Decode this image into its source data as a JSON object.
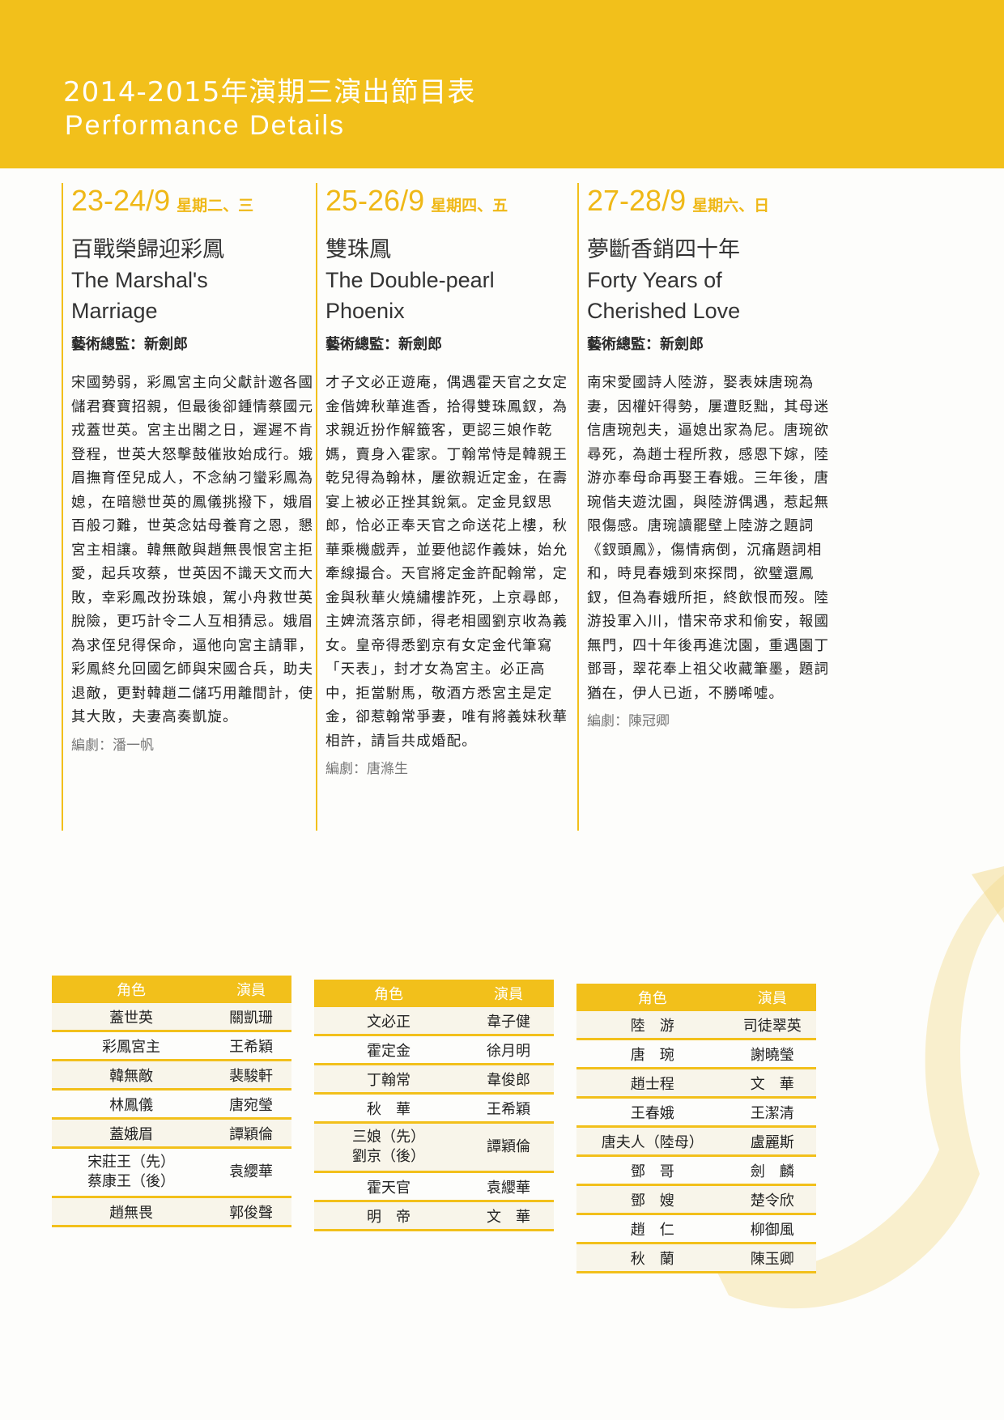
{
  "header": {
    "title_zh": "2014-2015年演期三演出節目表",
    "title_en": "Performance Details"
  },
  "colors": {
    "accent": "#f2c01b",
    "row_alt": "#f8f5ea"
  },
  "shows": [
    {
      "date": "23-24/9",
      "weekday": "星期二、三",
      "title_zh": "百戰榮歸迎彩鳳",
      "title_en_1": "The Marshal's",
      "title_en_2": "Marriage",
      "director": "藝術總監：新劍郎",
      "synopsis": "宋國勢弱，彩鳳宮主向父獻計邀各國儲君賽寶招親，但最後卻鍾情蔡國元戎蓋世英。宮主出閣之日，遲遲不肯登程，世英大怒擊鼓催妝始成行。娥眉撫育侄兒成人，不念納刁蠻彩鳳為媳，在暗戀世英的鳳儀挑撥下，娥眉百般刁難，世英念姑母養育之恩，懇宮主相讓。韓無敵與趙無畏恨宮主拒愛，起兵攻蔡，世英因不識天文而大敗，幸彩鳳改扮珠娘，駕小舟救世英脫險，更巧計令二人互相猜忌。娥眉為求侄兒得保命，逼他向宮主請罪，彩鳳終允回國乞師與宋國合兵，助夫退敵，更對韓趙二儲巧用離間計，使其大敗，夫妻高奏凱旋。",
      "writer": "編劇：潘一帆"
    },
    {
      "date": "25-26/9",
      "weekday": "星期四、五",
      "title_zh": "雙珠鳳",
      "title_en_1": "The Double-pearl",
      "title_en_2": "Phoenix",
      "director": "藝術總監：新劍郎",
      "synopsis": "才子文必正遊庵，偶遇霍天官之女定金偕婢秋華進香，拾得雙珠鳳釵，為求親近扮作解籤客，更認三娘作乾媽，賣身入霍家。丁翰常恃是韓親王乾兒得為翰林，屢欲親近定金，在壽宴上被必正挫其銳氣。定金見釵思郎，恰必正奉天官之命送花上樓，秋華乘機戲弄，並要他認作義妹，始允牽線撮合。天官將定金許配翰常，定金與秋華火燒繡樓詐死，上京尋郎，主婢流落京師，得老相國劉京收為義女。皇帝得悉劉京有女定金代筆寫「天表」，封才女為宮主。必正高中，拒當駙馬，敬酒方悉宮主是定金，卻惹翰常爭妻，唯有將義妹秋華相許，請旨共成婚配。",
      "writer": "編劇：唐滌生"
    },
    {
      "date": "27-28/9",
      "weekday": "星期六、日",
      "title_zh": "夢斷香銷四十年",
      "title_en_1": "Forty Years of",
      "title_en_2": "Cherished Love",
      "director": "藝術總監：新劍郎",
      "synopsis": "南宋愛國詩人陸游，娶表妹唐琬為妻，因權奸得勢，屢遭貶黜，其母迷信唐琬剋夫，逼媳出家為尼。唐琬欲尋死，為趙士程所救，感恩下嫁，陸游亦奉母命再娶王春娥。三年後，唐琬偕夫遊沈園，與陸游偶遇，惹起無限傷感。唐琬讀罷壁上陸游之題詞《釵頭鳳》，傷情病倒，沉痛題詞相和，時見春娥到來探問，欲璧還鳳釵，但為春娥所拒，終飲恨而歿。陸游投軍入川，惜宋帝求和偷安，報國無門，四十年後再進沈園，重遇園丁鄧哥，翠花奉上祖父收藏筆墨，題詞猶在，伊人已逝，不勝唏噓。",
      "writer": "編劇：陳冠卿"
    }
  ],
  "cast_tables": [
    {
      "headers": [
        "角色",
        "演員"
      ],
      "rows": [
        [
          "蓋世英",
          "關凱珊"
        ],
        [
          "彩鳳宮主",
          "王希穎"
        ],
        [
          "韓無敵",
          "裴駿軒"
        ],
        [
          "林鳳儀",
          "唐宛瑩"
        ],
        [
          "蓋娥眉",
          "譚穎倫"
        ],
        [
          "宋莊王（先）\n蔡康王（後）",
          "袁纓華"
        ],
        [
          "趙無畏",
          "郭俊聲"
        ]
      ]
    },
    {
      "headers": [
        "角色",
        "演員"
      ],
      "rows": [
        [
          "文必正",
          "韋子健"
        ],
        [
          "霍定金",
          "徐月明"
        ],
        [
          "丁翰常",
          "韋俊郎"
        ],
        [
          "秋　華",
          "王希穎"
        ],
        [
          "三娘（先）\n劉京（後）",
          "譚穎倫"
        ],
        [
          "霍天官",
          "袁纓華"
        ],
        [
          "明　帝",
          "文　華"
        ]
      ]
    },
    {
      "headers": [
        "角色",
        "演員"
      ],
      "rows": [
        [
          "陸　游",
          "司徒翠英"
        ],
        [
          "唐　琬",
          "謝曉瑩"
        ],
        [
          "趙士程",
          "文　華"
        ],
        [
          "王春娥",
          "王潔清"
        ],
        [
          "唐夫人（陸母）",
          "盧麗斯"
        ],
        [
          "鄧　哥",
          "劍　麟"
        ],
        [
          "鄧　嫂",
          "楚令欣"
        ],
        [
          "趙　仁",
          "柳御風"
        ],
        [
          "秋　蘭",
          "陳玉卿"
        ]
      ]
    }
  ]
}
